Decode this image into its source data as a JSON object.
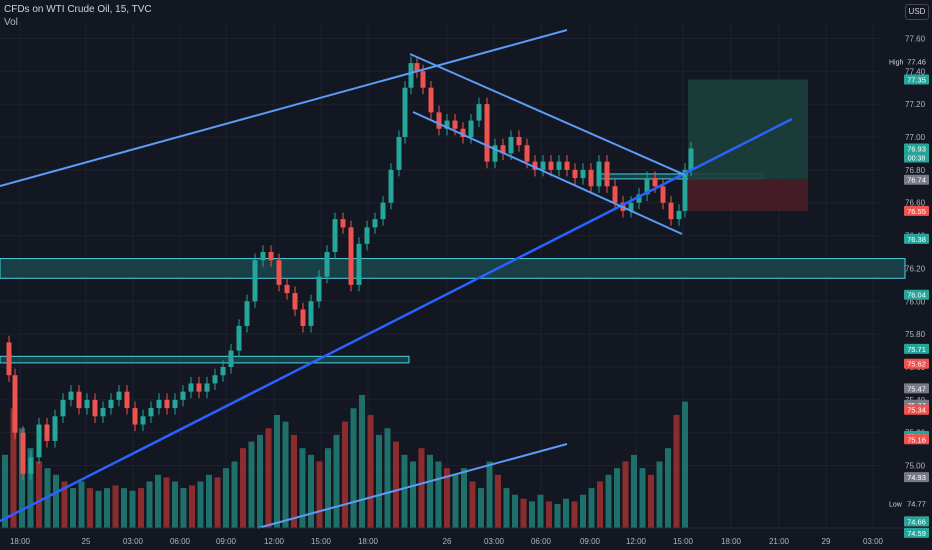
{
  "header": {
    "symbol_line": "CFDs on WTI Crude Oil, 15, TVC",
    "volume_label": "Vol",
    "currency": "USD"
  },
  "colors": {
    "background": "#131722",
    "up": "#26a69a",
    "down": "#ef5350",
    "up_volume": "#1f6f6a",
    "down_volume": "#8b2c2f",
    "trendline": "#5b9cf6",
    "trendline_strong": "#2962ff",
    "zone_fill": "#1b4d52",
    "zone_border": "#4dd0e1",
    "target_fill": "#1c3f3a",
    "stop_fill": "#4a1d26",
    "grid": "#1e222d"
  },
  "chart_data": {
    "type": "candlestick",
    "title": "CFDs on WTI Crude Oil, 15, TVC",
    "x_ticks": [
      "18:00",
      "25",
      "03:00",
      "06:00",
      "09:00",
      "12:00",
      "15:00",
      "18:00",
      "26",
      "03:00",
      "06:00",
      "09:00",
      "12:00",
      "15:00",
      "18:00",
      "21:00",
      "29",
      "03:00"
    ],
    "y_ticks": [
      77.6,
      77.4,
      77.2,
      77.0,
      76.8,
      76.6,
      76.4,
      76.2,
      76.0,
      75.8,
      75.6,
      75.4,
      75.2,
      75.0
    ],
    "ylim": [
      74.62,
      77.7
    ],
    "price_badges": [
      {
        "label": "High",
        "value": "77.46",
        "kind": "hl"
      },
      {
        "label": "",
        "value": "77.35",
        "kind": "green"
      },
      {
        "label": "",
        "value": "76.93",
        "kind": "green",
        "extra": "00:38"
      },
      {
        "label": "",
        "value": "76.74",
        "kind": "gray"
      },
      {
        "label": "",
        "value": "76.55",
        "kind": "red"
      },
      {
        "label": "",
        "value": "76.38",
        "kind": "green"
      },
      {
        "label": "",
        "value": "76.04",
        "kind": "green"
      },
      {
        "label": "",
        "value": "75.71",
        "kind": "green"
      },
      {
        "label": "",
        "value": "75.62",
        "kind": "red"
      },
      {
        "label": "",
        "value": "75.47",
        "kind": "gray"
      },
      {
        "label": "",
        "value": "75.37",
        "kind": "gray"
      },
      {
        "label": "",
        "value": "75.34",
        "kind": "red"
      },
      {
        "label": "",
        "value": "75.18",
        "kind": "green"
      },
      {
        "label": "",
        "value": "75.16",
        "kind": "red"
      },
      {
        "label": "",
        "value": "74.93",
        "kind": "gray"
      },
      {
        "label": "Low",
        "value": "74.77",
        "kind": "hl"
      },
      {
        "label": "",
        "value": "74.66",
        "kind": "red"
      },
      {
        "label": "",
        "value": "74.66",
        "kind": "green"
      },
      {
        "label": "",
        "value": "74.59",
        "kind": "green"
      }
    ],
    "close_path": [
      [
        0,
        75.75
      ],
      [
        6,
        75.55
      ],
      [
        12,
        75.2
      ],
      [
        20,
        74.95
      ],
      [
        28,
        75.05
      ],
      [
        36,
        75.25
      ],
      [
        44,
        75.15
      ],
      [
        52,
        75.3
      ],
      [
        60,
        75.4
      ],
      [
        68,
        75.45
      ],
      [
        76,
        75.35
      ],
      [
        84,
        75.4
      ],
      [
        92,
        75.3
      ],
      [
        100,
        75.35
      ],
      [
        108,
        75.4
      ],
      [
        116,
        75.45
      ],
      [
        124,
        75.35
      ],
      [
        132,
        75.25
      ],
      [
        140,
        75.3
      ],
      [
        148,
        75.35
      ],
      [
        156,
        75.4
      ],
      [
        164,
        75.35
      ],
      [
        172,
        75.4
      ],
      [
        180,
        75.45
      ],
      [
        188,
        75.5
      ],
      [
        196,
        75.45
      ],
      [
        204,
        75.5
      ],
      [
        212,
        75.55
      ],
      [
        220,
        75.6
      ],
      [
        228,
        75.7
      ],
      [
        236,
        75.85
      ],
      [
        244,
        76.0
      ],
      [
        252,
        76.25
      ],
      [
        260,
        76.3
      ],
      [
        268,
        76.25
      ],
      [
        276,
        76.1
      ],
      [
        284,
        76.05
      ],
      [
        292,
        75.95
      ],
      [
        300,
        75.85
      ],
      [
        308,
        76.0
      ],
      [
        316,
        76.15
      ],
      [
        324,
        76.3
      ],
      [
        332,
        76.5
      ],
      [
        340,
        76.45
      ],
      [
        348,
        76.1
      ],
      [
        356,
        76.35
      ],
      [
        364,
        76.45
      ],
      [
        372,
        76.5
      ],
      [
        380,
        76.6
      ],
      [
        388,
        76.8
      ],
      [
        396,
        77.0
      ],
      [
        402,
        77.3
      ],
      [
        408,
        77.45
      ],
      [
        414,
        77.4
      ],
      [
        420,
        77.3
      ],
      [
        428,
        77.15
      ],
      [
        436,
        77.05
      ],
      [
        444,
        77.1
      ],
      [
        452,
        77.05
      ],
      [
        460,
        77.0
      ],
      [
        468,
        77.1
      ],
      [
        476,
        77.2
      ],
      [
        484,
        76.85
      ],
      [
        492,
        76.95
      ],
      [
        500,
        76.9
      ],
      [
        508,
        77.0
      ],
      [
        516,
        76.95
      ],
      [
        524,
        76.85
      ],
      [
        532,
        76.8
      ],
      [
        540,
        76.85
      ],
      [
        548,
        76.8
      ],
      [
        556,
        76.85
      ],
      [
        564,
        76.8
      ],
      [
        572,
        76.75
      ],
      [
        580,
        76.8
      ],
      [
        588,
        76.7
      ],
      [
        596,
        76.85
      ],
      [
        604,
        76.7
      ],
      [
        612,
        76.6
      ],
      [
        620,
        76.55
      ],
      [
        628,
        76.6
      ],
      [
        636,
        76.65
      ],
      [
        644,
        76.75
      ],
      [
        652,
        76.7
      ],
      [
        660,
        76.6
      ],
      [
        668,
        76.5
      ],
      [
        676,
        76.55
      ],
      [
        682,
        76.8
      ],
      [
        688,
        76.93
      ]
    ],
    "volume_heights": [
      0.55,
      0.9,
      0.75,
      0.6,
      0.5,
      0.45,
      0.4,
      0.35,
      0.3,
      0.35,
      0.3,
      0.28,
      0.3,
      0.32,
      0.3,
      0.28,
      0.3,
      0.35,
      0.4,
      0.38,
      0.35,
      0.3,
      0.32,
      0.35,
      0.4,
      0.38,
      0.45,
      0.5,
      0.6,
      0.65,
      0.7,
      0.75,
      0.85,
      0.8,
      0.7,
      0.6,
      0.55,
      0.5,
      0.6,
      0.7,
      0.8,
      0.9,
      1.0,
      0.85,
      0.7,
      0.75,
      0.65,
      0.55,
      0.5,
      0.6,
      0.55,
      0.5,
      0.45,
      0.4,
      0.45,
      0.35,
      0.3,
      0.5,
      0.4,
      0.3,
      0.25,
      0.22,
      0.2,
      0.25,
      0.2,
      0.18,
      0.22,
      0.2,
      0.25,
      0.3,
      0.35,
      0.4,
      0.45,
      0.5,
      0.55,
      0.45,
      0.4,
      0.5,
      0.6,
      0.85,
      0.95
    ]
  },
  "drawings": {
    "zones": [
      {
        "y_top": 76.26,
        "y_bottom": 76.14,
        "x_end": 905
      },
      {
        "y_top": 75.665,
        "y_bottom": 75.625,
        "x_end": 409
      },
      {
        "y_top": 76.775,
        "y_bottom": 76.745,
        "x_start": 600,
        "x_end": 763
      }
    ],
    "target_box": {
      "y_top": 77.35,
      "y_bottom": 76.74,
      "x_start": 688,
      "x_end": 808
    },
    "stop_box": {
      "y_top": 76.74,
      "y_bottom": 76.55,
      "x_start": 688,
      "x_end": 808
    }
  }
}
